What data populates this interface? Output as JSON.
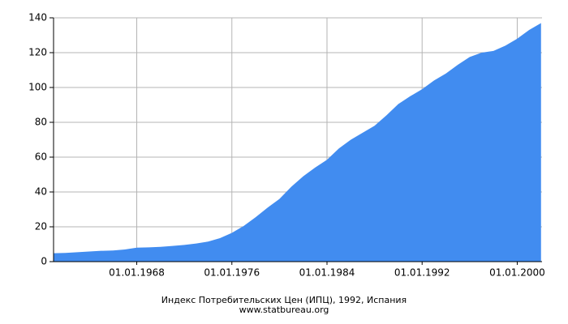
{
  "chart_data": {
    "type": "area",
    "title": "Индекс Потребительских Цен (ИПЦ), 1992, Испания",
    "source": "www.statbureau.org",
    "x": [
      "01.01.1961",
      "01.01.1962",
      "01.01.1963",
      "01.01.1964",
      "01.01.1965",
      "01.01.1966",
      "01.01.1967",
      "01.01.1968",
      "01.01.1969",
      "01.01.1970",
      "01.01.1971",
      "01.01.1972",
      "01.01.1973",
      "01.01.1974",
      "01.01.1975",
      "01.01.1976",
      "01.01.1977",
      "01.01.1978",
      "01.01.1979",
      "01.01.1980",
      "01.01.1981",
      "01.01.1982",
      "01.01.1983",
      "01.01.1984",
      "01.01.1985",
      "01.01.1986",
      "01.01.1987",
      "01.01.1988",
      "01.01.1989",
      "01.01.1990",
      "01.01.1991",
      "01.01.1992",
      "01.01.1993",
      "01.01.1994",
      "01.01.1995",
      "01.01.1996",
      "01.01.1997",
      "01.01.1998",
      "01.01.1999",
      "01.01.2000",
      "01.01.2001",
      "01.01.2002"
    ],
    "values": [
      4.8,
      5.0,
      5.4,
      5.8,
      6.2,
      6.4,
      7.0,
      8.0,
      8.2,
      8.5,
      9.0,
      9.6,
      10.4,
      11.5,
      13.5,
      16.5,
      20.5,
      25.5,
      31,
      36,
      43,
      49,
      54,
      58.5,
      65,
      70,
      74,
      78,
      84,
      90.5,
      95,
      99,
      104,
      108,
      113,
      117.5,
      120,
      121,
      124,
      128,
      133,
      137
    ],
    "color": "#418cf0",
    "xlim": [
      "01.01.1961",
      "01.02.2002"
    ],
    "xticks": [
      "01.01.1968",
      "01.01.1976",
      "01.01.1984",
      "01.01.1992",
      "01.01.2000"
    ],
    "ylim": [
      0,
      140
    ],
    "yticks": [
      0,
      20,
      40,
      60,
      80,
      100,
      120,
      140
    ],
    "grid": true
  }
}
